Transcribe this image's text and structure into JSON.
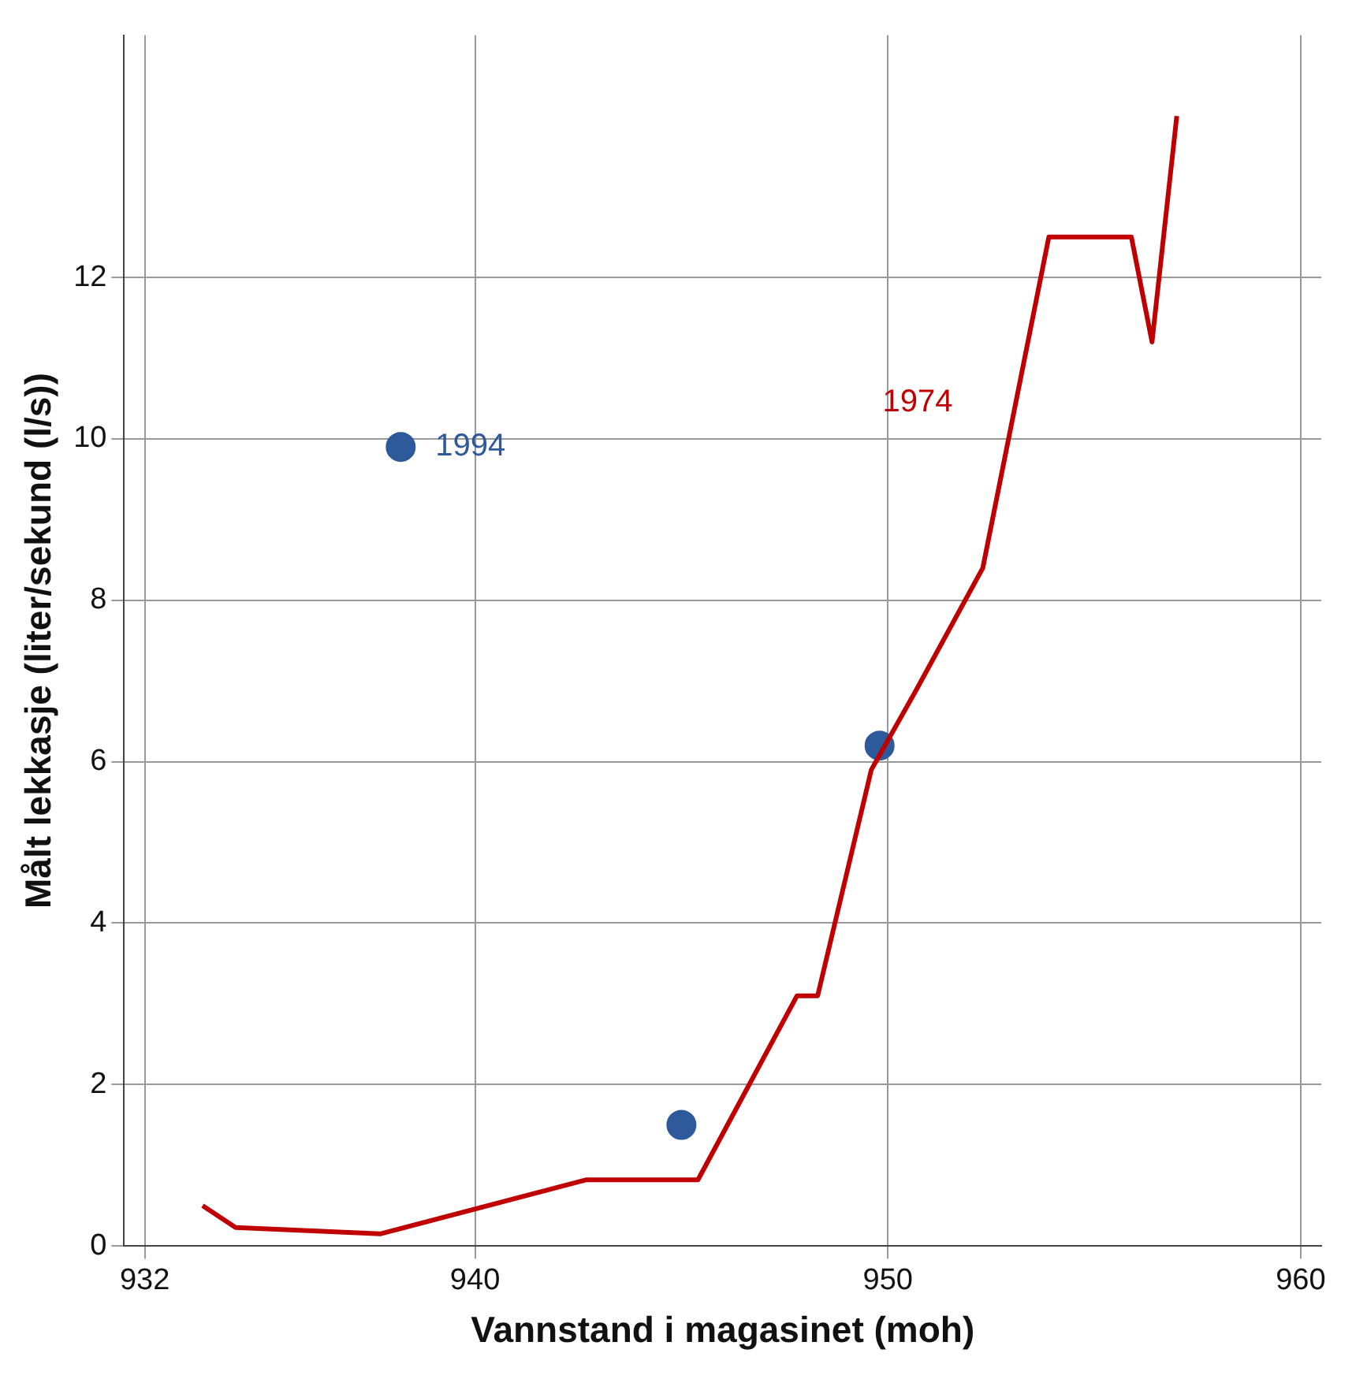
{
  "chart_data": {
    "type": "line",
    "xlabel": "Vannstand i magasinet (moh)",
    "ylabel": "Målt lekkasje (liter/sekund (l/s))",
    "xlim": [
      931.5,
      960.5
    ],
    "ylim": [
      0,
      15
    ],
    "xticks": [
      932,
      940,
      950,
      960
    ],
    "yticks": [
      0,
      2,
      4,
      6,
      8,
      10,
      12
    ],
    "grid": true,
    "legend": false,
    "series": [
      {
        "name": "1974",
        "color": "#c00000",
        "marker": "none",
        "x": [
          933.4,
          934.2,
          937.7,
          942.7,
          945.4,
          947.8,
          948.3,
          949.6,
          950.7,
          952.3,
          953.9,
          955.9,
          956.4,
          957.0
        ],
        "values": [
          0.5,
          0.23,
          0.15,
          0.82,
          0.82,
          3.1,
          3.1,
          5.9,
          6.9,
          8.4,
          12.5,
          12.5,
          11.2,
          14.0
        ]
      },
      {
        "name": "1994",
        "type": "scatter",
        "color": "#2e5a9c",
        "marker": "circle",
        "x": [
          938.2,
          945.0,
          949.8
        ],
        "values": [
          9.9,
          1.5,
          6.2
        ]
      }
    ]
  }
}
